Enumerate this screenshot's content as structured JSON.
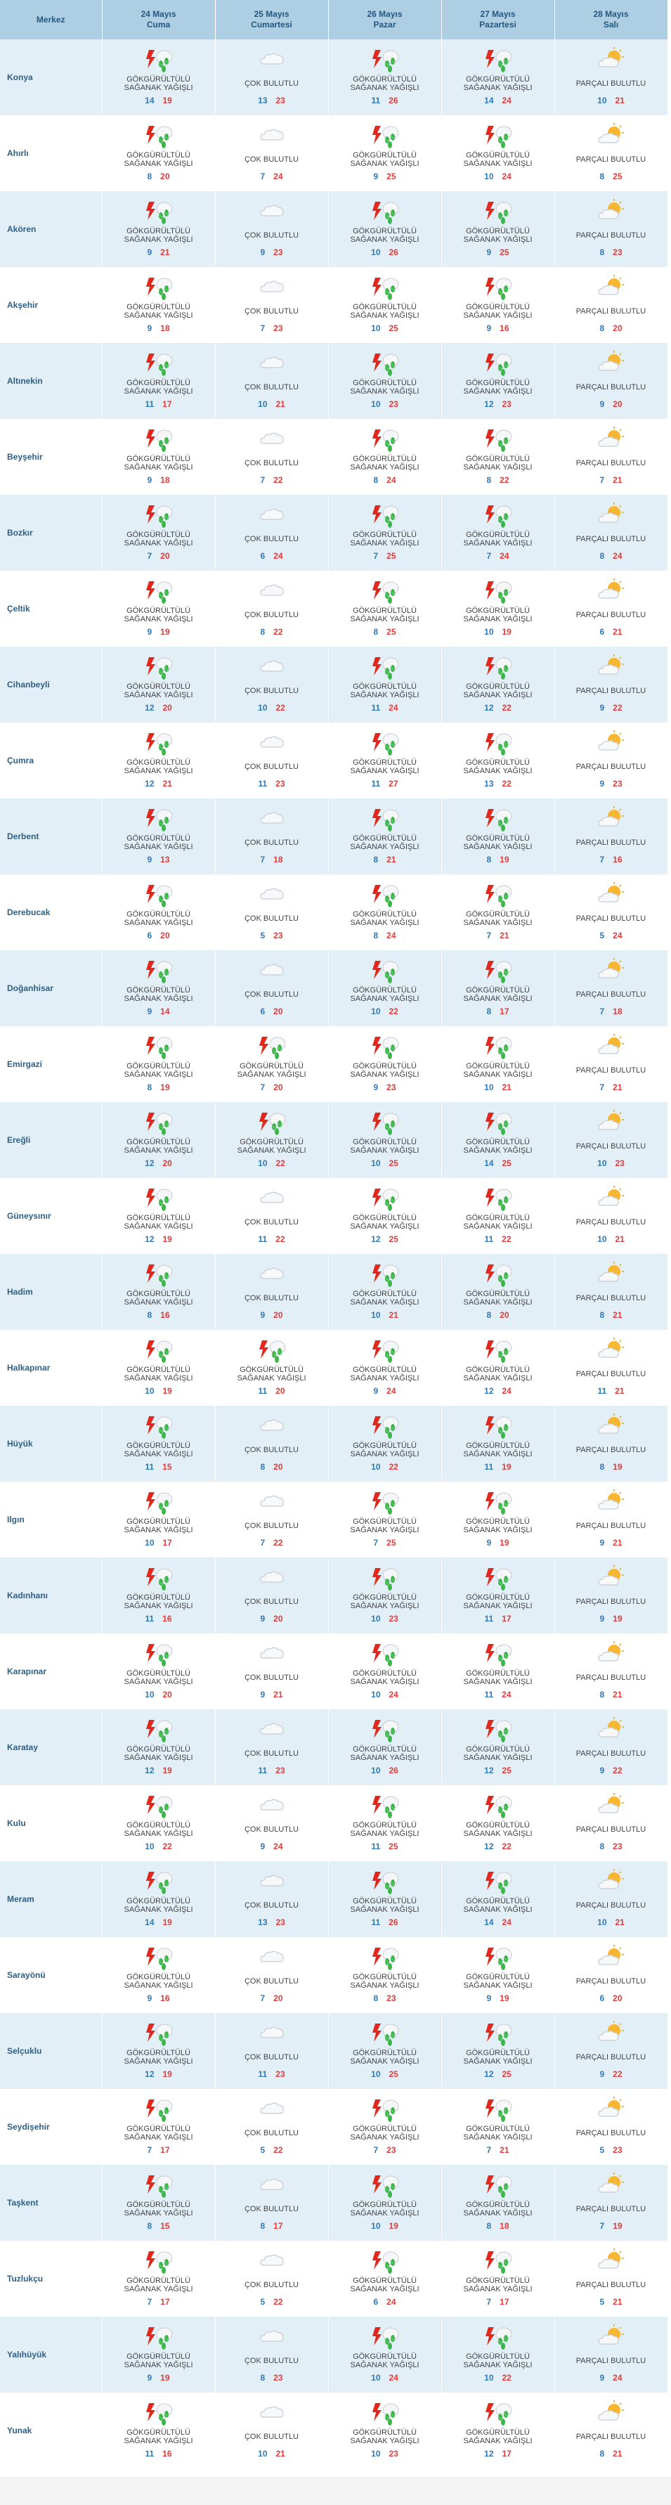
{
  "header": {
    "merkez": "Merkez",
    "days": [
      {
        "date": "24 Mayıs",
        "weekday": "Cuma"
      },
      {
        "date": "25 Mayıs",
        "weekday": "Cumartesi"
      },
      {
        "date": "26 Mayıs",
        "weekday": "Pazar"
      },
      {
        "date": "27 Mayıs",
        "weekday": "Pazartesi"
      },
      {
        "date": "28 Mayıs",
        "weekday": "Salı"
      }
    ]
  },
  "conditions": {
    "storm": {
      "line1": "GÖKGÜRÜLTÜLÜ",
      "line2": "SAĞANAK YAĞIŞLI",
      "icon": "thunderstorm-icon"
    },
    "cloudy": {
      "line1": "ÇOK BULUTLU",
      "line2": "",
      "icon": "cloud-icon"
    },
    "partly": {
      "line1": "PARÇALI BULUTLU",
      "line2": "",
      "icon": "partly-cloudy-icon"
    }
  },
  "colors": {
    "header_bg": "#aecfe3",
    "header_text": "#23577f",
    "row_alt": "#e3eff6",
    "city_text": "#2f5f85",
    "min_temp": "#2f79b5",
    "max_temp": "#e23b3b"
  },
  "rows": [
    {
      "city": "Konya",
      "days": [
        [
          "storm",
          "14",
          "19"
        ],
        [
          "cloudy",
          "13",
          "23"
        ],
        [
          "storm",
          "11",
          "26"
        ],
        [
          "storm",
          "14",
          "24"
        ],
        [
          "partly",
          "10",
          "21"
        ]
      ]
    },
    {
      "city": "Ahırlı",
      "days": [
        [
          "storm",
          "8",
          "20"
        ],
        [
          "cloudy",
          "7",
          "24"
        ],
        [
          "storm",
          "9",
          "25"
        ],
        [
          "storm",
          "10",
          "24"
        ],
        [
          "partly",
          "8",
          "25"
        ]
      ]
    },
    {
      "city": "Akören",
      "days": [
        [
          "storm",
          "9",
          "21"
        ],
        [
          "cloudy",
          "9",
          "23"
        ],
        [
          "storm",
          "10",
          "26"
        ],
        [
          "storm",
          "9",
          "25"
        ],
        [
          "partly",
          "8",
          "23"
        ]
      ]
    },
    {
      "city": "Akşehir",
      "days": [
        [
          "storm",
          "9",
          "18"
        ],
        [
          "cloudy",
          "7",
          "23"
        ],
        [
          "storm",
          "10",
          "25"
        ],
        [
          "storm",
          "9",
          "16"
        ],
        [
          "partly",
          "8",
          "20"
        ]
      ]
    },
    {
      "city": "Altınekin",
      "days": [
        [
          "storm",
          "11",
          "17"
        ],
        [
          "cloudy",
          "10",
          "21"
        ],
        [
          "storm",
          "10",
          "23"
        ],
        [
          "storm",
          "12",
          "23"
        ],
        [
          "partly",
          "9",
          "20"
        ]
      ]
    },
    {
      "city": "Beyşehir",
      "days": [
        [
          "storm",
          "9",
          "18"
        ],
        [
          "cloudy",
          "7",
          "22"
        ],
        [
          "storm",
          "8",
          "24"
        ],
        [
          "storm",
          "8",
          "22"
        ],
        [
          "partly",
          "7",
          "21"
        ]
      ]
    },
    {
      "city": "Bozkır",
      "days": [
        [
          "storm",
          "7",
          "20"
        ],
        [
          "cloudy",
          "6",
          "24"
        ],
        [
          "storm",
          "7",
          "25"
        ],
        [
          "storm",
          "7",
          "24"
        ],
        [
          "partly",
          "8",
          "24"
        ]
      ]
    },
    {
      "city": "Çeltik",
      "days": [
        [
          "storm",
          "9",
          "19"
        ],
        [
          "cloudy",
          "8",
          "22"
        ],
        [
          "storm",
          "8",
          "25"
        ],
        [
          "storm",
          "10",
          "19"
        ],
        [
          "partly",
          "6",
          "21"
        ]
      ]
    },
    {
      "city": "Cihanbeyli",
      "days": [
        [
          "storm",
          "12",
          "20"
        ],
        [
          "cloudy",
          "10",
          "22"
        ],
        [
          "storm",
          "11",
          "24"
        ],
        [
          "storm",
          "12",
          "22"
        ],
        [
          "partly",
          "9",
          "22"
        ]
      ]
    },
    {
      "city": "Çumra",
      "days": [
        [
          "storm",
          "12",
          "21"
        ],
        [
          "cloudy",
          "11",
          "23"
        ],
        [
          "storm",
          "11",
          "27"
        ],
        [
          "storm",
          "13",
          "22"
        ],
        [
          "partly",
          "9",
          "23"
        ]
      ]
    },
    {
      "city": "Derbent",
      "days": [
        [
          "storm",
          "9",
          "13"
        ],
        [
          "cloudy",
          "7",
          "18"
        ],
        [
          "storm",
          "8",
          "21"
        ],
        [
          "storm",
          "8",
          "19"
        ],
        [
          "partly",
          "7",
          "16"
        ]
      ]
    },
    {
      "city": "Derebucak",
      "days": [
        [
          "storm",
          "6",
          "20"
        ],
        [
          "cloudy",
          "5",
          "23"
        ],
        [
          "storm",
          "8",
          "24"
        ],
        [
          "storm",
          "7",
          "21"
        ],
        [
          "partly",
          "5",
          "24"
        ]
      ]
    },
    {
      "city": "Doğanhisar",
      "days": [
        [
          "storm",
          "9",
          "14"
        ],
        [
          "cloudy",
          "6",
          "20"
        ],
        [
          "storm",
          "10",
          "22"
        ],
        [
          "storm",
          "8",
          "17"
        ],
        [
          "partly",
          "7",
          "18"
        ]
      ]
    },
    {
      "city": "Emirgazi",
      "days": [
        [
          "storm",
          "8",
          "19"
        ],
        [
          "storm",
          "7",
          "20"
        ],
        [
          "storm",
          "9",
          "23"
        ],
        [
          "storm",
          "10",
          "21"
        ],
        [
          "partly",
          "7",
          "21"
        ]
      ]
    },
    {
      "city": "Ereğli",
      "days": [
        [
          "storm",
          "12",
          "20"
        ],
        [
          "storm",
          "10",
          "22"
        ],
        [
          "storm",
          "10",
          "25"
        ],
        [
          "storm",
          "14",
          "25"
        ],
        [
          "partly",
          "10",
          "23"
        ]
      ]
    },
    {
      "city": "Güneysınır",
      "days": [
        [
          "storm",
          "12",
          "19"
        ],
        [
          "cloudy",
          "11",
          "22"
        ],
        [
          "storm",
          "12",
          "25"
        ],
        [
          "storm",
          "11",
          "22"
        ],
        [
          "partly",
          "10",
          "21"
        ]
      ]
    },
    {
      "city": "Hadim",
      "days": [
        [
          "storm",
          "8",
          "16"
        ],
        [
          "cloudy",
          "9",
          "20"
        ],
        [
          "storm",
          "10",
          "21"
        ],
        [
          "storm",
          "8",
          "20"
        ],
        [
          "partly",
          "8",
          "21"
        ]
      ]
    },
    {
      "city": "Halkapınar",
      "days": [
        [
          "storm",
          "10",
          "19"
        ],
        [
          "storm",
          "11",
          "20"
        ],
        [
          "storm",
          "9",
          "24"
        ],
        [
          "storm",
          "12",
          "24"
        ],
        [
          "partly",
          "11",
          "21"
        ]
      ]
    },
    {
      "city": "Hüyük",
      "days": [
        [
          "storm",
          "11",
          "15"
        ],
        [
          "cloudy",
          "8",
          "20"
        ],
        [
          "storm",
          "10",
          "22"
        ],
        [
          "storm",
          "11",
          "19"
        ],
        [
          "partly",
          "8",
          "19"
        ]
      ]
    },
    {
      "city": "Ilgın",
      "days": [
        [
          "storm",
          "10",
          "17"
        ],
        [
          "cloudy",
          "7",
          "22"
        ],
        [
          "storm",
          "7",
          "25"
        ],
        [
          "storm",
          "9",
          "19"
        ],
        [
          "partly",
          "9",
          "21"
        ]
      ]
    },
    {
      "city": "Kadınhanı",
      "days": [
        [
          "storm",
          "11",
          "16"
        ],
        [
          "cloudy",
          "9",
          "20"
        ],
        [
          "storm",
          "10",
          "23"
        ],
        [
          "storm",
          "11",
          "17"
        ],
        [
          "partly",
          "9",
          "19"
        ]
      ]
    },
    {
      "city": "Karapınar",
      "days": [
        [
          "storm",
          "10",
          "20"
        ],
        [
          "cloudy",
          "9",
          "21"
        ],
        [
          "storm",
          "10",
          "24"
        ],
        [
          "storm",
          "11",
          "24"
        ],
        [
          "partly",
          "8",
          "21"
        ]
      ]
    },
    {
      "city": "Karatay",
      "days": [
        [
          "storm",
          "12",
          "19"
        ],
        [
          "cloudy",
          "11",
          "23"
        ],
        [
          "storm",
          "10",
          "26"
        ],
        [
          "storm",
          "12",
          "25"
        ],
        [
          "partly",
          "9",
          "22"
        ]
      ]
    },
    {
      "city": "Kulu",
      "days": [
        [
          "storm",
          "10",
          "22"
        ],
        [
          "cloudy",
          "9",
          "24"
        ],
        [
          "storm",
          "11",
          "25"
        ],
        [
          "storm",
          "12",
          "22"
        ],
        [
          "partly",
          "8",
          "23"
        ]
      ]
    },
    {
      "city": "Meram",
      "days": [
        [
          "storm",
          "14",
          "19"
        ],
        [
          "cloudy",
          "13",
          "23"
        ],
        [
          "storm",
          "11",
          "26"
        ],
        [
          "storm",
          "14",
          "24"
        ],
        [
          "partly",
          "10",
          "21"
        ]
      ]
    },
    {
      "city": "Sarayönü",
      "days": [
        [
          "storm",
          "9",
          "16"
        ],
        [
          "cloudy",
          "7",
          "20"
        ],
        [
          "storm",
          "8",
          "23"
        ],
        [
          "storm",
          "9",
          "19"
        ],
        [
          "partly",
          "6",
          "20"
        ]
      ]
    },
    {
      "city": "Selçuklu",
      "days": [
        [
          "storm",
          "12",
          "19"
        ],
        [
          "cloudy",
          "11",
          "23"
        ],
        [
          "storm",
          "10",
          "25"
        ],
        [
          "storm",
          "12",
          "25"
        ],
        [
          "partly",
          "9",
          "22"
        ]
      ]
    },
    {
      "city": "Seydişehir",
      "days": [
        [
          "storm",
          "7",
          "17"
        ],
        [
          "cloudy",
          "5",
          "22"
        ],
        [
          "storm",
          "7",
          "23"
        ],
        [
          "storm",
          "7",
          "21"
        ],
        [
          "partly",
          "5",
          "23"
        ]
      ]
    },
    {
      "city": "Taşkent",
      "days": [
        [
          "storm",
          "8",
          "15"
        ],
        [
          "cloudy",
          "8",
          "17"
        ],
        [
          "storm",
          "10",
          "19"
        ],
        [
          "storm",
          "8",
          "18"
        ],
        [
          "partly",
          "7",
          "19"
        ]
      ]
    },
    {
      "city": "Tuzlukçu",
      "days": [
        [
          "storm",
          "7",
          "17"
        ],
        [
          "cloudy",
          "5",
          "22"
        ],
        [
          "storm",
          "6",
          "24"
        ],
        [
          "storm",
          "7",
          "17"
        ],
        [
          "partly",
          "5",
          "21"
        ]
      ]
    },
    {
      "city": "Yalıhüyük",
      "days": [
        [
          "storm",
          "9",
          "19"
        ],
        [
          "cloudy",
          "8",
          "23"
        ],
        [
          "storm",
          "10",
          "24"
        ],
        [
          "storm",
          "10",
          "22"
        ],
        [
          "partly",
          "9",
          "24"
        ]
      ]
    },
    {
      "city": "Yunak",
      "days": [
        [
          "storm",
          "11",
          "16"
        ],
        [
          "cloudy",
          "10",
          "21"
        ],
        [
          "storm",
          "10",
          "23"
        ],
        [
          "storm",
          "12",
          "17"
        ],
        [
          "partly",
          "8",
          "21"
        ]
      ]
    }
  ]
}
